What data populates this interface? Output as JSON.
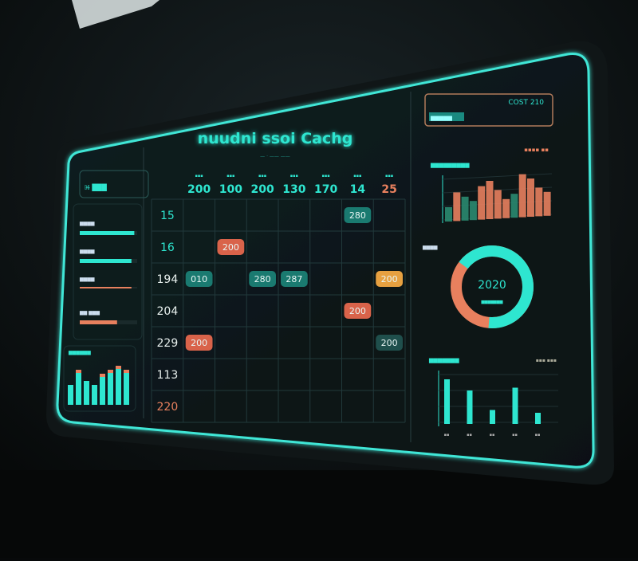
{
  "colors": {
    "accent": "#2ee6d0",
    "accent_dim": "#1f8f85",
    "warm": "#e8805e",
    "amber": "#e6a040",
    "panel": "#0d1516",
    "frame": "#3fe6d6"
  },
  "header": {
    "title": "nuudni ssoi Cachg",
    "subtitle": "— · —— ——"
  },
  "left_panel": {
    "card_label": "ℍ̶ ███",
    "meters": [
      {
        "label": "▆▆▆▆",
        "value": 0.95,
        "color": "#2ee6d0"
      },
      {
        "label": "▆▆▆▆",
        "value": 0.9,
        "color": "#2ee6d0"
      },
      {
        "label": "▆▆▆▆",
        "value": 0.9,
        "color": "#e8805e"
      },
      {
        "label": "▆▆ ▆▆▆",
        "value": 0.65,
        "color": "#e8805e"
      }
    ],
    "mini_chart": {
      "label": "▆▆▆▆▆▆",
      "values": [
        5,
        8,
        6,
        5,
        7,
        8,
        9,
        8
      ],
      "caps": [
        0,
        1,
        0,
        0,
        1,
        1,
        1,
        1
      ]
    }
  },
  "grid": {
    "columns": [
      {
        "small": "▪▪▪",
        "value": "200",
        "color": "#2ee6d0"
      },
      {
        "small": "▪▪▪",
        "value": "100",
        "color": "#2ee6d0"
      },
      {
        "small": "▪▪▪",
        "value": "200",
        "color": "#2ee6d0"
      },
      {
        "small": "▪▪▪",
        "value": "130",
        "color": "#2ee6d0"
      },
      {
        "small": "▪▪▪",
        "value": "170",
        "color": "#2ee6d0"
      },
      {
        "small": "▪▪▪",
        "value": "14",
        "color": "#2ee6d0"
      },
      {
        "small": "▪▪▪",
        "value": "25",
        "color": "#e8805e"
      }
    ],
    "rows": [
      {
        "value": "15",
        "color": "#2ee6d0"
      },
      {
        "value": "16",
        "color": "#2ee6d0"
      },
      {
        "value": "194",
        "color": "#e8f0ee"
      },
      {
        "value": "204",
        "color": "#e8f0ee"
      },
      {
        "value": "229",
        "color": "#e8f0ee"
      },
      {
        "value": "113",
        "color": "#e8f0ee"
      },
      {
        "value": "220",
        "color": "#e8805e"
      }
    ],
    "pills": [
      {
        "text": "280",
        "row": 0,
        "col": 5,
        "color": "#1a7a70"
      },
      {
        "text": "200",
        "row": 1,
        "col": 1,
        "color": "#d9634a"
      },
      {
        "text": "200",
        "row": 2,
        "col": 6,
        "color": "#e6a040"
      },
      {
        "text": "010",
        "row": 2,
        "col": 0,
        "color": "#1a7a70"
      },
      {
        "text": "280",
        "row": 2,
        "col": 2,
        "color": "#1a7a70"
      },
      {
        "text": "287",
        "row": 2,
        "col": 3,
        "color": "#1a7a70"
      },
      {
        "text": "200",
        "row": 3,
        "col": 5,
        "color": "#d9634a"
      },
      {
        "text": "200",
        "row": 4,
        "col": 0,
        "color": "#d9634a"
      },
      {
        "text": "200",
        "row": 4,
        "col": 6,
        "color": "#1f4f4c"
      }
    ]
  },
  "right_panel": {
    "header_box": {
      "badge": "▆▆▆▆▆",
      "value": "COST 210"
    },
    "bar_chart": {
      "label": "▆▆▆▆▆▆▆▆▆",
      "legend": "▪▪▪▪ ▪▪",
      "values": [
        3,
        6,
        5,
        4,
        7,
        8,
        6,
        4,
        5,
        9,
        8,
        6,
        5
      ],
      "colors": [
        "#2a8a70",
        "#e8805e",
        "#2a8a70",
        "#2a8a70",
        "#e8805e",
        "#e8805e",
        "#e8805e",
        "#e8805e",
        "#2a8a70",
        "#e8805e",
        "#e8805e",
        "#e8805e",
        "#e8805e"
      ]
    },
    "donut": {
      "label": "▆▆▆▆",
      "value": "2020",
      "caption": "▆▆▆▆▆▆▆",
      "fraction_accent": 0.66
    },
    "bottom_chart": {
      "label": "▆▆▆▆▆▆▆",
      "legend": "▪▪▪ ▪▪▪",
      "values": [
        8,
        6,
        2.5,
        6.5,
        2
      ],
      "categories": [
        "▪▪",
        "▪▪",
        "▪▪",
        "▪▪",
        "▪▪"
      ]
    }
  }
}
